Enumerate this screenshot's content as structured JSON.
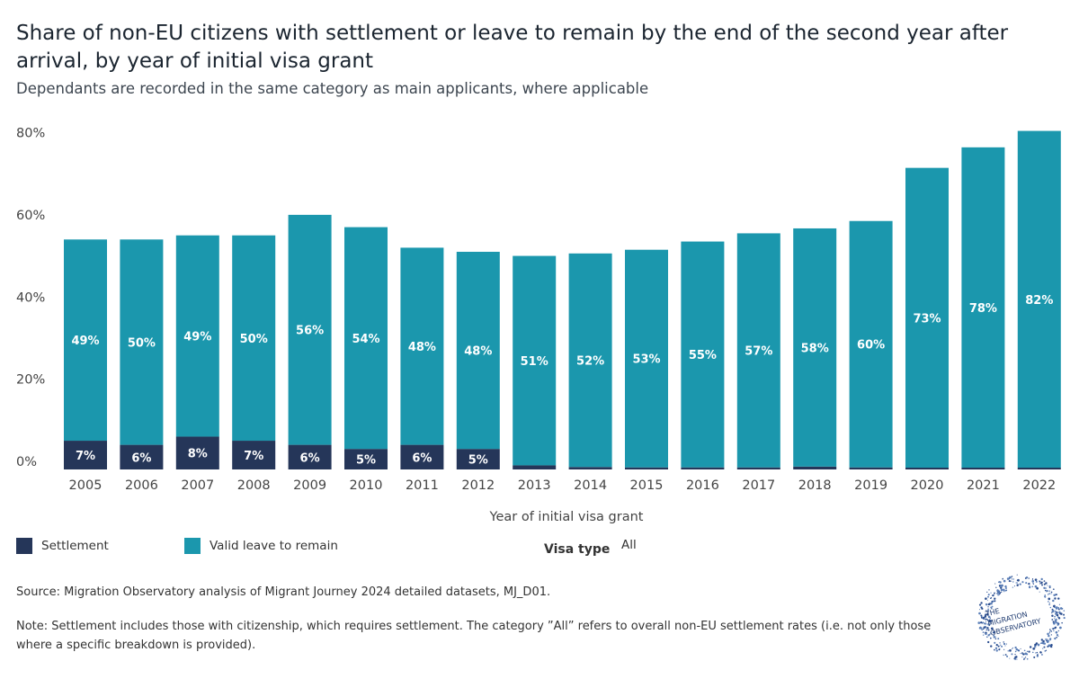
{
  "header": {
    "title": "Share of non-EU citizens with settlement or leave to remain by the end of the second year after arrival, by year of initial visa grant",
    "subtitle": "Dependants are recorded in the same category as main applicants, where applicable"
  },
  "legend": {
    "settlement_label": "Settlement",
    "leave_label": "Valid leave to remain"
  },
  "filter": {
    "label": "Visa type",
    "value": "All"
  },
  "footer": {
    "source": "Source: Migration Observatory analysis of Migrant Journey 2024 detailed datasets, MJ_D01.",
    "note": "Note: Settlement includes those with citizenship, which requires settlement. The category ”All” refers to overall non-EU settlement rates (i.e. not only those where a specific breakdown is provided)."
  },
  "logo": {
    "line1": "THE",
    "line2": "MIGRATION",
    "line3": "OBSERVATORY"
  },
  "colors": {
    "settlement": "#253659",
    "leave": "#1b97ad",
    "axis_text": "#444444",
    "bar_label": "#ffffff"
  },
  "chart_data": {
    "type": "bar",
    "stacked": true,
    "xlabel": "Year of initial visa grant",
    "ylabel": "",
    "ylim": [
      0,
      83
    ],
    "yticks": [
      "0%",
      "20%",
      "40%",
      "60%",
      "80%"
    ],
    "ytick_values": [
      0,
      20,
      40,
      60,
      80
    ],
    "grid": false,
    "categories": [
      "2005",
      "2006",
      "2007",
      "2008",
      "2009",
      "2010",
      "2011",
      "2012",
      "2013",
      "2014",
      "2015",
      "2016",
      "2017",
      "2018",
      "2019",
      "2020",
      "2021",
      "2022"
    ],
    "series": [
      {
        "name": "Settlement",
        "values": [
          7,
          6,
          8,
          7,
          6,
          5,
          6,
          5,
          1,
          0.6,
          0.5,
          0.5,
          0.5,
          0.7,
          0.5,
          0.4,
          0.1,
          0.1
        ],
        "labels": [
          "7%",
          "6%",
          "8%",
          "7%",
          "6%",
          "5%",
          "6%",
          "5%",
          "",
          "",
          "",
          "",
          "",
          "",
          "",
          "",
          "",
          ""
        ]
      },
      {
        "name": "Valid leave to remain",
        "values": [
          49,
          50,
          49,
          50,
          56,
          54,
          48,
          48,
          51,
          52,
          53,
          55,
          57,
          58,
          60,
          73,
          78,
          82
        ],
        "labels": [
          "49%",
          "50%",
          "49%",
          "50%",
          "56%",
          "54%",
          "48%",
          "48%",
          "51%",
          "52%",
          "53%",
          "55%",
          "57%",
          "58%",
          "60%",
          "73%",
          "78%",
          "82%"
        ]
      }
    ],
    "legend_position": "bottom-left"
  }
}
